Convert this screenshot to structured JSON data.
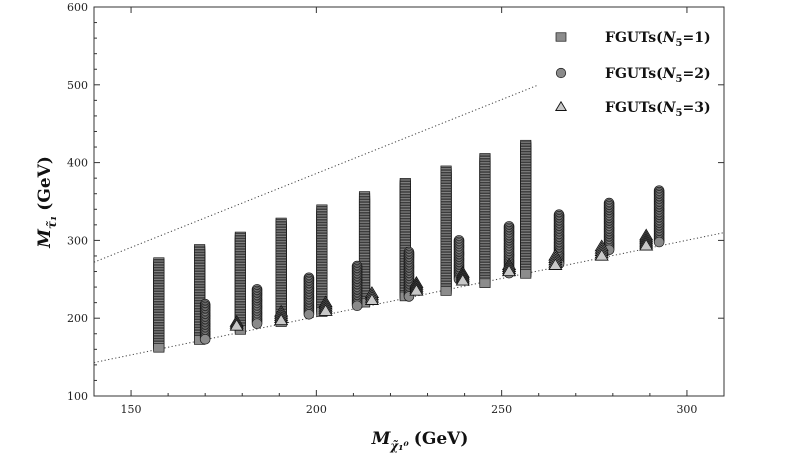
{
  "chart_data": {
    "type": "scatter",
    "xlim": [
      140,
      310
    ],
    "ylim": [
      100,
      600
    ],
    "x_ticks": [
      150,
      200,
      250,
      300
    ],
    "y_ticks": [
      100,
      200,
      300,
      400,
      500,
      600
    ],
    "xlabel": {
      "main": "M",
      "subscript": "χ̃₁⁰",
      "unit": "(GeV)"
    },
    "ylabel": {
      "main": "M",
      "subscript": "τ̃₁",
      "unit": "(GeV)"
    },
    "legend_position": "top-right",
    "legend": [
      {
        "label_main": "FGUTs(",
        "label_var": "N",
        "label_sub": "5",
        "label_end": "=1)",
        "marker": "square"
      },
      {
        "label_main": "FGUTs(",
        "label_var": "N",
        "label_sub": "5",
        "label_end": "=2)",
        "marker": "circle"
      },
      {
        "label_main": "FGUTs(",
        "label_var": "N",
        "label_sub": "5",
        "label_end": "=3)",
        "marker": "triangle"
      }
    ],
    "reference_lines": [
      {
        "style": "dotted",
        "x": [
          140,
          260
        ],
        "y": [
          272,
          500
        ]
      },
      {
        "style": "dotted",
        "x": [
          140,
          310
        ],
        "y": [
          143,
          310
        ]
      }
    ],
    "series": [
      {
        "marker": "square",
        "columns": [
          {
            "x": 157.5,
            "ymin": 162,
            "ymax": 272
          },
          {
            "x": 168.5,
            "ymin": 172,
            "ymax": 289
          },
          {
            "x": 179.5,
            "ymin": 185,
            "ymax": 305
          },
          {
            "x": 190.5,
            "ymin": 195,
            "ymax": 323
          },
          {
            "x": 201.5,
            "ymin": 208,
            "ymax": 340
          },
          {
            "x": 213.0,
            "ymin": 220,
            "ymax": 357
          },
          {
            "x": 224.0,
            "ymin": 228,
            "ymax": 374
          },
          {
            "x": 235.0,
            "ymin": 235,
            "ymax": 390
          },
          {
            "x": 245.5,
            "ymin": 245,
            "ymax": 406
          },
          {
            "x": 256.5,
            "ymin": 257,
            "ymax": 423
          }
        ]
      },
      {
        "marker": "circle",
        "columns": [
          {
            "x": 170.0,
            "ymin": 173,
            "ymax": 218
          },
          {
            "x": 184.0,
            "ymin": 193,
            "ymax": 237
          },
          {
            "x": 198.0,
            "ymin": 205,
            "ymax": 252
          },
          {
            "x": 211.0,
            "ymin": 216,
            "ymax": 267
          },
          {
            "x": 225.0,
            "ymin": 228,
            "ymax": 285
          },
          {
            "x": 238.5,
            "ymin": 250,
            "ymax": 300
          },
          {
            "x": 252.0,
            "ymin": 258,
            "ymax": 318
          },
          {
            "x": 265.5,
            "ymin": 270,
            "ymax": 333
          },
          {
            "x": 279.0,
            "ymin": 288,
            "ymax": 348
          },
          {
            "x": 292.5,
            "ymin": 298,
            "ymax": 364
          }
        ]
      },
      {
        "marker": "triangle",
        "columns": [
          {
            "x": 178.5,
            "ymin": 190,
            "ymax": 195
          },
          {
            "x": 190.5,
            "ymin": 197,
            "ymax": 208
          },
          {
            "x": 202.5,
            "ymin": 209,
            "ymax": 220
          },
          {
            "x": 215.0,
            "ymin": 223,
            "ymax": 232
          },
          {
            "x": 227.0,
            "ymin": 235,
            "ymax": 245
          },
          {
            "x": 239.5,
            "ymin": 248,
            "ymax": 258
          },
          {
            "x": 252.0,
            "ymin": 260,
            "ymax": 268
          },
          {
            "x": 264.5,
            "ymin": 268,
            "ymax": 280
          },
          {
            "x": 277.0,
            "ymin": 280,
            "ymax": 292
          },
          {
            "x": 289.0,
            "ymin": 293,
            "ymax": 306
          }
        ]
      }
    ]
  }
}
